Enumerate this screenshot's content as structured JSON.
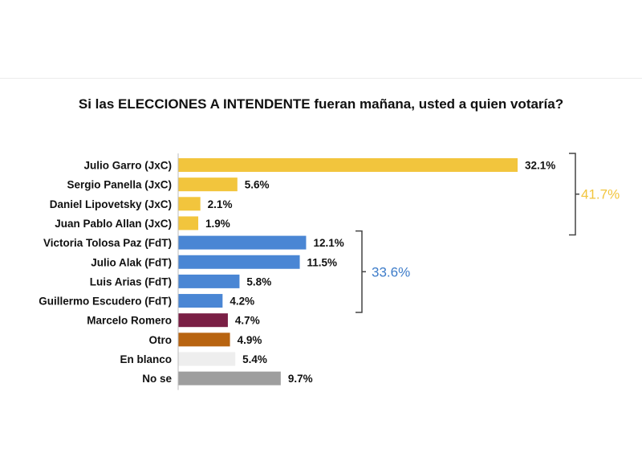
{
  "chart_data": {
    "type": "bar",
    "orientation": "horizontal",
    "title": "Si las ELECCIONES A INTENDENTE  fueran mañana, usted a quien votaría?",
    "categories": [
      "Julio Garro (JxC)",
      "Sergio Panella (JxC)",
      "Daniel Lipovetsky (JxC)",
      "Juan Pablo Allan (JxC)",
      "Victoria Tolosa Paz (FdT)",
      "Julio Alak (FdT)",
      "Luis Arias (FdT)",
      "Guillermo Escudero (FdT)",
      "Marcelo Romero",
      "Otro",
      "En blanco",
      "No se"
    ],
    "values": [
      32.1,
      5.6,
      2.1,
      1.9,
      12.1,
      11.5,
      5.8,
      4.2,
      4.7,
      4.9,
      5.4,
      9.7
    ],
    "value_labels": [
      "32.1%",
      "5.6%",
      "2.1%",
      "1.9%",
      "12.1%",
      "11.5%",
      "5.8%",
      "4.2%",
      "4.7%",
      "4.9%",
      "5.4%",
      "9.7%"
    ],
    "bar_colors": [
      "#f2c53d",
      "#f2c53d",
      "#f2c53d",
      "#f2c53d",
      "#4a86d4",
      "#4a86d4",
      "#4a86d4",
      "#4a86d4",
      "#7a1f45",
      "#b86411",
      "#eeeeee",
      "#9e9e9e"
    ],
    "groups": [
      {
        "label": "41.7%",
        "value": 41.7,
        "color": "#f2c53d",
        "from_index": 0,
        "to_index": 3
      },
      {
        "label": "33.6%",
        "value": 33.6,
        "color": "#3d7cc9",
        "from_index": 4,
        "to_index": 7
      }
    ],
    "xlim": [
      0,
      32.1
    ],
    "grid": false,
    "legend": "none"
  }
}
